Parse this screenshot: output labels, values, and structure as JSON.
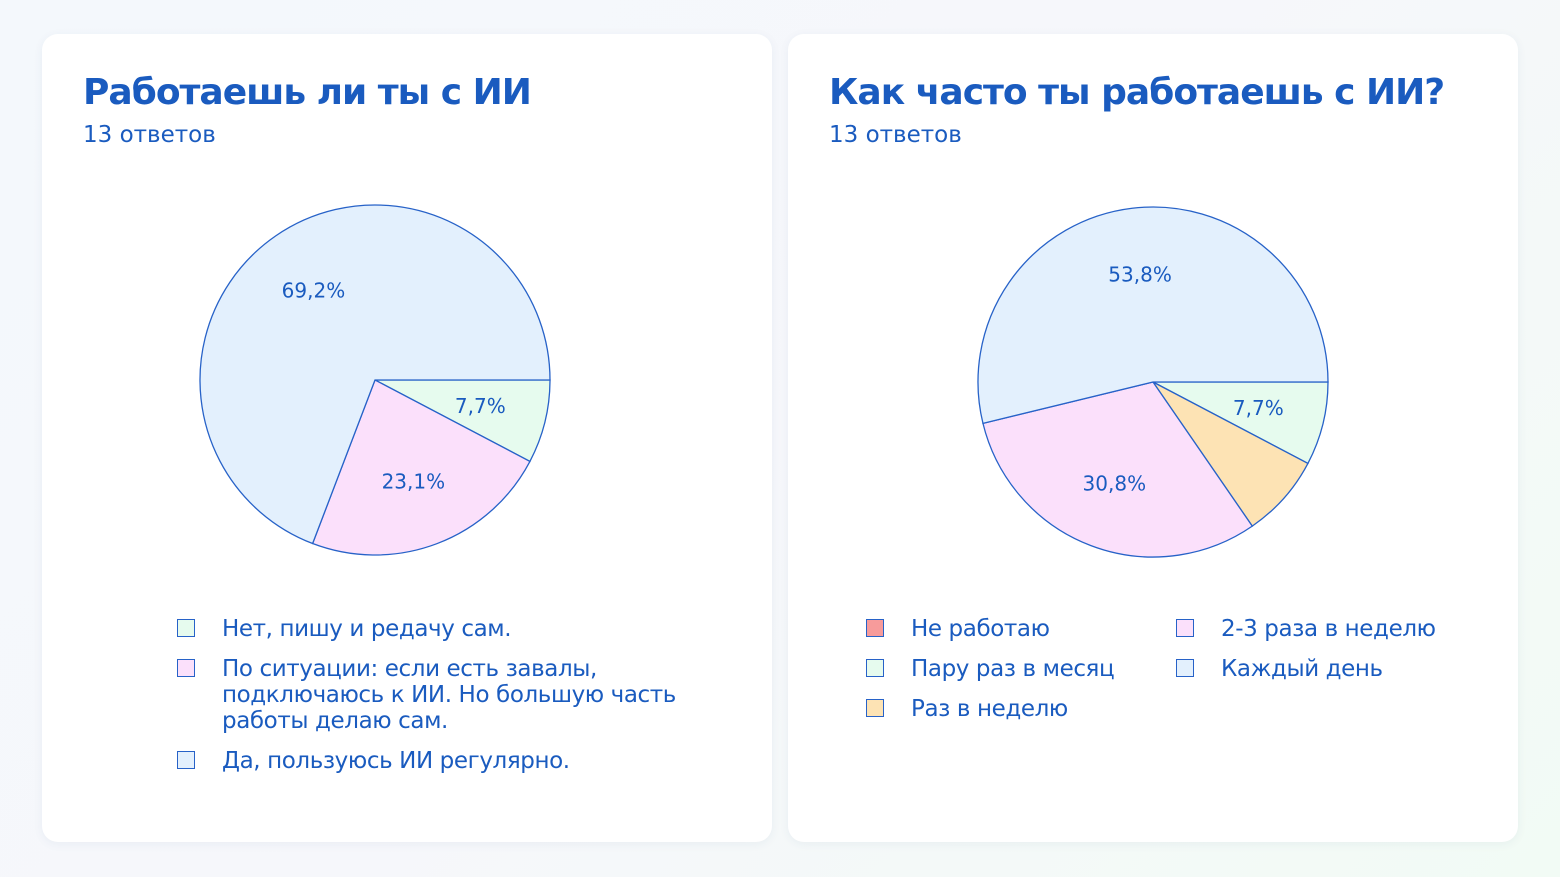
{
  "chart_data": [
    {
      "type": "pie",
      "title": "Работаешь ли ты с ИИ",
      "subtitle": "13 ответов",
      "slices": [
        {
          "label": "Нет, пишу и редачу сам.",
          "value": 7.7,
          "data_label": "7,7%",
          "color": "#e6fbee"
        },
        {
          "label": "По ситуации: если есть завалы, подключаюсь к ИИ. Но большую часть работы делаю сам.",
          "value": 23.1,
          "data_label": "23,1%",
          "color": "#fbe0fb"
        },
        {
          "label": "Да, пользуюсь ИИ регулярно.",
          "value": 69.2,
          "data_label": "69,2%",
          "color": "#e3f0fd"
        }
      ]
    },
    {
      "type": "pie",
      "title": "Как часто ты работаешь с ИИ?",
      "subtitle": "13 ответов",
      "slices": [
        {
          "label": "Не работаю",
          "value": 0,
          "data_label": null,
          "color": "#f79b9b"
        },
        {
          "label": "Пару раз в месяц",
          "value": 7.7,
          "data_label": "7,7%",
          "color": "#e6fbee"
        },
        {
          "label": "Раз в неделю",
          "value": 7.7,
          "data_label": null,
          "color": "#fde3b4"
        },
        {
          "label": "2-3 раза в неделю",
          "value": 30.8,
          "data_label": "30,8%",
          "color": "#fbe0fb"
        },
        {
          "label": "Каждый день",
          "value": 53.8,
          "data_label": "53,8%",
          "color": "#e3f0fd"
        }
      ]
    }
  ],
  "stroke_color": "#2762c8"
}
